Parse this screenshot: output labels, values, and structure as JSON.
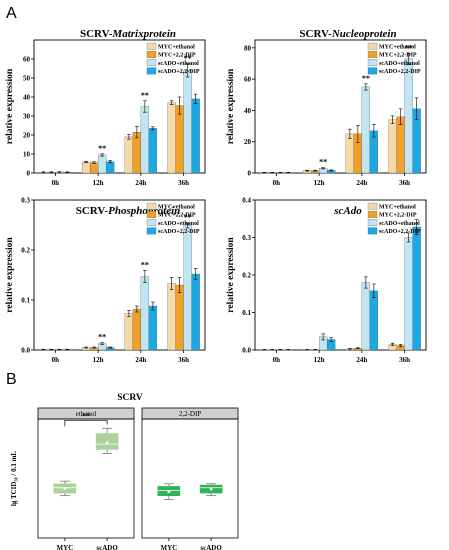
{
  "panel_letters": {
    "a": "A",
    "b": "B"
  },
  "legend": [
    "MYC+ethanol",
    "MYC+2,2-DIP",
    "scADO+ethanol",
    "scADO+2,2-DIP"
  ],
  "colors": {
    "series": [
      "#F6D9A6",
      "#F0A12A",
      "#BFE6F2",
      "#1CA9E3"
    ],
    "box_ethanol_myc": "#A9D39A",
    "box_ethanol_scado": "#A9D39A",
    "box_dip": "#2DB35C",
    "strip_bg": "#CFCFCF"
  },
  "significance": "**",
  "chart_data": [
    {
      "type": "bar",
      "title_prefix": "SCRV-",
      "title_italic": "Matrixprotein",
      "ylabel": "relative expression",
      "categories": [
        "0h",
        "12h",
        "24h",
        "36h"
      ],
      "ylim": [
        0,
        70
      ],
      "yticks": [
        "0",
        "10",
        "20",
        "30",
        "40",
        "50",
        "60"
      ],
      "ytick_values": [
        0,
        10,
        20,
        30,
        40,
        50,
        60
      ],
      "series": [
        {
          "name": "MYC+ethanol",
          "values": [
            0.4,
            5.8,
            19,
            37
          ],
          "err": [
            0.2,
            0.4,
            1.2,
            1.0
          ]
        },
        {
          "name": "MYC+2,2-DIP",
          "values": [
            0.4,
            5.5,
            21.5,
            35.5
          ],
          "err": [
            0.2,
            0.4,
            3.0,
            4.5
          ]
        },
        {
          "name": "scADO+ethanol",
          "values": [
            0.5,
            9.5,
            35,
            54
          ],
          "err": [
            0.2,
            0.6,
            3.0,
            3.5
          ]
        },
        {
          "name": "scADO+2,2-DIP",
          "values": [
            0.4,
            6.0,
            23.5,
            39
          ],
          "err": [
            0.2,
            0.6,
            0.8,
            2.5
          ]
        }
      ],
      "sig_categories": [
        1,
        2,
        3
      ]
    },
    {
      "type": "bar",
      "title_prefix": "SCRV-",
      "title_italic": "Nucleoprotein",
      "ylabel": "relative expression",
      "categories": [
        "0h",
        "12h",
        "24h",
        "36h"
      ],
      "ylim": [
        0,
        85
      ],
      "yticks": [
        "0",
        "20",
        "40",
        "60",
        "80"
      ],
      "ytick_values": [
        0,
        20,
        40,
        60,
        80
      ],
      "series": [
        {
          "name": "MYC+ethanol",
          "values": [
            0.3,
            1.5,
            25,
            34
          ],
          "err": [
            0.1,
            0.3,
            3.0,
            2.5
          ]
        },
        {
          "name": "MYC+2,2-DIP",
          "values": [
            0.3,
            1.5,
            25,
            36
          ],
          "err": [
            0.1,
            0.3,
            5.5,
            5.0
          ]
        },
        {
          "name": "scADO+ethanol",
          "values": [
            0.3,
            3.0,
            55,
            73
          ],
          "err": [
            0.1,
            0.4,
            2.0,
            3.5
          ]
        },
        {
          "name": "scADO+2,2-DIP",
          "values": [
            0.3,
            1.7,
            27,
            41
          ],
          "err": [
            0.1,
            0.3,
            4.0,
            7.0
          ]
        }
      ],
      "sig_categories": [
        1,
        2,
        3
      ]
    },
    {
      "type": "bar",
      "title_prefix": "SCRV-",
      "title_italic": "Phosphoprotein",
      "ylabel": "relative expression",
      "categories": [
        "0h",
        "12h",
        "24h",
        "36h"
      ],
      "ylim": [
        0,
        0.3
      ],
      "yticks": [
        "0.0",
        "0.1",
        "0.2",
        "0.3"
      ],
      "ytick_values": [
        0.0,
        0.1,
        0.2,
        0.3
      ],
      "series": [
        {
          "name": "MYC+ethanol",
          "values": [
            0.001,
            0.005,
            0.073,
            0.133
          ],
          "err": [
            0.0005,
            0.001,
            0.006,
            0.012
          ]
        },
        {
          "name": "MYC+2,2-DIP",
          "values": [
            0.001,
            0.005,
            0.082,
            0.13
          ],
          "err": [
            0.0005,
            0.001,
            0.006,
            0.015
          ]
        },
        {
          "name": "scADO+ethanol",
          "values": [
            0.001,
            0.013,
            0.147,
            0.249
          ],
          "err": [
            0.0005,
            0.002,
            0.012,
            0.005
          ]
        },
        {
          "name": "scADO+2,2-DIP",
          "values": [
            0.001,
            0.005,
            0.088,
            0.152
          ],
          "err": [
            0.0005,
            0.001,
            0.008,
            0.011
          ]
        }
      ],
      "sig_categories": [
        1,
        2,
        3
      ]
    },
    {
      "type": "bar",
      "title_prefix": "",
      "title_italic": "scAdo",
      "ylabel": "relative expression",
      "categories": [
        "0h",
        "12h",
        "24h",
        "36h"
      ],
      "ylim": [
        0,
        0.4
      ],
      "yticks": [
        "0.0",
        "0.1",
        "0.2",
        "0.3",
        "0.4"
      ],
      "ytick_values": [
        0.0,
        0.1,
        0.2,
        0.3,
        0.4
      ],
      "series": [
        {
          "name": "MYC+ethanol",
          "values": [
            0.001,
            0.001,
            0.003,
            0.015
          ],
          "err": [
            0.0005,
            0.0005,
            0.001,
            0.003
          ]
        },
        {
          "name": "MYC+2,2-DIP",
          "values": [
            0.001,
            0.001,
            0.005,
            0.012
          ],
          "err": [
            0.0005,
            0.0005,
            0.001,
            0.003
          ]
        },
        {
          "name": "scADO+ethanol",
          "values": [
            0.001,
            0.035,
            0.18,
            0.3
          ],
          "err": [
            0.0005,
            0.008,
            0.015,
            0.012
          ]
        },
        {
          "name": "scADO+2,2-DIP",
          "values": [
            0.001,
            0.028,
            0.158,
            0.328
          ],
          "err": [
            0.0005,
            0.005,
            0.018,
            0.02
          ]
        }
      ],
      "sig_categories": []
    },
    {
      "type": "box",
      "title": "SCRV",
      "ylabel": "lg TCID₅₀ / 0.1 mL",
      "facets": [
        "ethanol",
        "2,2-DIP"
      ],
      "categories": [
        "MYC",
        "scADO"
      ],
      "ylim": [
        0,
        9
      ],
      "boxes": [
        {
          "facet": "ethanol",
          "category": "MYC",
          "whisker_low": 3.2,
          "q1": 3.4,
          "median": 3.8,
          "q3": 4.1,
          "whisker_high": 4.3,
          "mean": 3.75
        },
        {
          "facet": "ethanol",
          "category": "scADO",
          "whisker_low": 6.4,
          "q1": 6.7,
          "median": 7.1,
          "q3": 7.9,
          "whisker_high": 8.3,
          "mean": 7.2
        },
        {
          "facet": "2,2-DIP",
          "category": "MYC",
          "whisker_low": 2.9,
          "q1": 3.2,
          "median": 3.6,
          "q3": 3.9,
          "whisker_high": 4.1,
          "mean": 3.5
        },
        {
          "facet": "2,2-DIP",
          "category": "scADO",
          "whisker_low": 3.2,
          "q1": 3.4,
          "median": 3.8,
          "q3": 4.0,
          "whisker_high": 4.1,
          "mean": 3.7
        }
      ]
    }
  ]
}
